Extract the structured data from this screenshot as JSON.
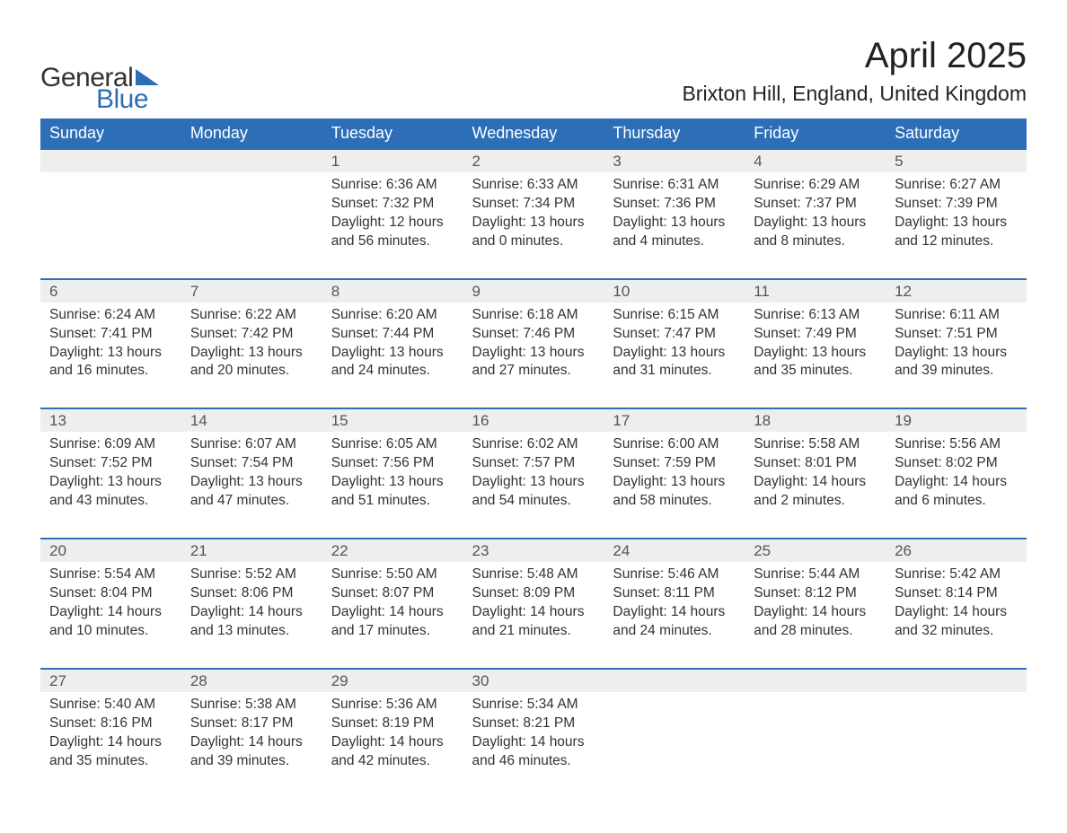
{
  "logo": {
    "word1": "General",
    "word2": "Blue"
  },
  "title": "April 2025",
  "location": "Brixton Hill, England, United Kingdom",
  "header_color": "#2d6fb7",
  "daynum_bg": "#eeeeee",
  "border_color": "#2d6fb7",
  "columns": [
    "Sunday",
    "Monday",
    "Tuesday",
    "Wednesday",
    "Thursday",
    "Friday",
    "Saturday"
  ],
  "weeks": [
    [
      null,
      null,
      {
        "d": "1",
        "sr": "6:36 AM",
        "ss": "7:32 PM",
        "dl": "12 hours and 56 minutes."
      },
      {
        "d": "2",
        "sr": "6:33 AM",
        "ss": "7:34 PM",
        "dl": "13 hours and 0 minutes."
      },
      {
        "d": "3",
        "sr": "6:31 AM",
        "ss": "7:36 PM",
        "dl": "13 hours and 4 minutes."
      },
      {
        "d": "4",
        "sr": "6:29 AM",
        "ss": "7:37 PM",
        "dl": "13 hours and 8 minutes."
      },
      {
        "d": "5",
        "sr": "6:27 AM",
        "ss": "7:39 PM",
        "dl": "13 hours and 12 minutes."
      }
    ],
    [
      {
        "d": "6",
        "sr": "6:24 AM",
        "ss": "7:41 PM",
        "dl": "13 hours and 16 minutes."
      },
      {
        "d": "7",
        "sr": "6:22 AM",
        "ss": "7:42 PM",
        "dl": "13 hours and 20 minutes."
      },
      {
        "d": "8",
        "sr": "6:20 AM",
        "ss": "7:44 PM",
        "dl": "13 hours and 24 minutes."
      },
      {
        "d": "9",
        "sr": "6:18 AM",
        "ss": "7:46 PM",
        "dl": "13 hours and 27 minutes."
      },
      {
        "d": "10",
        "sr": "6:15 AM",
        "ss": "7:47 PM",
        "dl": "13 hours and 31 minutes."
      },
      {
        "d": "11",
        "sr": "6:13 AM",
        "ss": "7:49 PM",
        "dl": "13 hours and 35 minutes."
      },
      {
        "d": "12",
        "sr": "6:11 AM",
        "ss": "7:51 PM",
        "dl": "13 hours and 39 minutes."
      }
    ],
    [
      {
        "d": "13",
        "sr": "6:09 AM",
        "ss": "7:52 PM",
        "dl": "13 hours and 43 minutes."
      },
      {
        "d": "14",
        "sr": "6:07 AM",
        "ss": "7:54 PM",
        "dl": "13 hours and 47 minutes."
      },
      {
        "d": "15",
        "sr": "6:05 AM",
        "ss": "7:56 PM",
        "dl": "13 hours and 51 minutes."
      },
      {
        "d": "16",
        "sr": "6:02 AM",
        "ss": "7:57 PM",
        "dl": "13 hours and 54 minutes."
      },
      {
        "d": "17",
        "sr": "6:00 AM",
        "ss": "7:59 PM",
        "dl": "13 hours and 58 minutes."
      },
      {
        "d": "18",
        "sr": "5:58 AM",
        "ss": "8:01 PM",
        "dl": "14 hours and 2 minutes."
      },
      {
        "d": "19",
        "sr": "5:56 AM",
        "ss": "8:02 PM",
        "dl": "14 hours and 6 minutes."
      }
    ],
    [
      {
        "d": "20",
        "sr": "5:54 AM",
        "ss": "8:04 PM",
        "dl": "14 hours and 10 minutes."
      },
      {
        "d": "21",
        "sr": "5:52 AM",
        "ss": "8:06 PM",
        "dl": "14 hours and 13 minutes."
      },
      {
        "d": "22",
        "sr": "5:50 AM",
        "ss": "8:07 PM",
        "dl": "14 hours and 17 minutes."
      },
      {
        "d": "23",
        "sr": "5:48 AM",
        "ss": "8:09 PM",
        "dl": "14 hours and 21 minutes."
      },
      {
        "d": "24",
        "sr": "5:46 AM",
        "ss": "8:11 PM",
        "dl": "14 hours and 24 minutes."
      },
      {
        "d": "25",
        "sr": "5:44 AM",
        "ss": "8:12 PM",
        "dl": "14 hours and 28 minutes."
      },
      {
        "d": "26",
        "sr": "5:42 AM",
        "ss": "8:14 PM",
        "dl": "14 hours and 32 minutes."
      }
    ],
    [
      {
        "d": "27",
        "sr": "5:40 AM",
        "ss": "8:16 PM",
        "dl": "14 hours and 35 minutes."
      },
      {
        "d": "28",
        "sr": "5:38 AM",
        "ss": "8:17 PM",
        "dl": "14 hours and 39 minutes."
      },
      {
        "d": "29",
        "sr": "5:36 AM",
        "ss": "8:19 PM",
        "dl": "14 hours and 42 minutes."
      },
      {
        "d": "30",
        "sr": "5:34 AM",
        "ss": "8:21 PM",
        "dl": "14 hours and 46 minutes."
      },
      null,
      null,
      null
    ]
  ],
  "labels": {
    "sunrise": "Sunrise: ",
    "sunset": "Sunset: ",
    "daylight": "Daylight: "
  }
}
